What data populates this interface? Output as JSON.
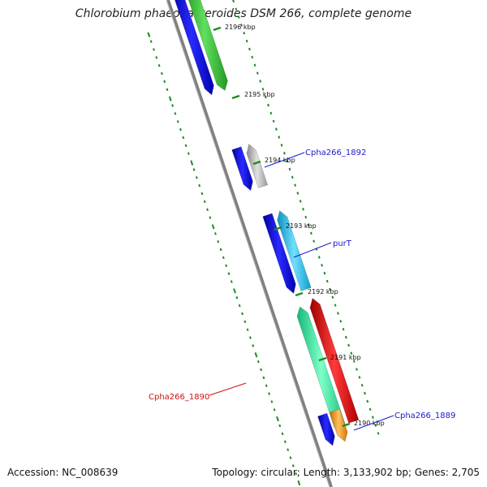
{
  "title": "Chlorobium phaeobacteroides DSM 266, complete genome",
  "footer": {
    "accession": "Accession: NC_008639",
    "summary": "Topology: circular; Length: 3,133,902 bp; Genes: 2,705"
  },
  "tick_labels": [
    "2196 kbp",
    "2195 kbp",
    "2194 kbp",
    "2193 kbp",
    "2192 kbp",
    "2191 kbp",
    "2190 kbp"
  ],
  "gene_labels": [
    {
      "text": "Cpha266_1892",
      "color": "#1a1acc"
    },
    {
      "text": "purT",
      "color": "#1a1acc"
    },
    {
      "text": "Cpha266_1890",
      "color": "#cc1111"
    },
    {
      "text": "Cpha266_1889",
      "color": "#1a1acc"
    }
  ],
  "colors": {
    "backbone": "#8a8a8a",
    "ticks": "#1f8a1f",
    "cds_blue": "#1414e6",
    "gene_green": "#33cc33",
    "gene_grey": "#b4b4b4",
    "gene_cyan": "#22c8f0",
    "gene_spring": "#22f0a0",
    "gene_red": "#ee1111",
    "gene_orange": "#ff9011"
  }
}
